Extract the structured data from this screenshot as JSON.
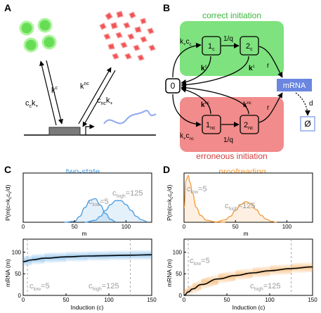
{
  "panel_labels": {
    "a": "A",
    "b": "B",
    "c": "C",
    "d": "D"
  },
  "panel_a": {
    "k_left": "c",
    "k_left_sub": "c",
    "k_left_rest": "k",
    "k_left_plus": "+",
    "k_c": "k",
    "k_c_sup": "c",
    "k_nc": "k",
    "k_nc_sup": "nc",
    "k_right": "c",
    "k_right_sub": "nc",
    "k_right_rest": "k",
    "k_right_plus": "+"
  },
  "panel_b": {
    "correct_title": "correct initiation",
    "erroneous_title": "erroneous initiation",
    "state_zero": "0",
    "state_1c": "1",
    "state_1c_sub": "c",
    "state_2c": "2",
    "state_2c_sub": "c",
    "state_1nc": "1",
    "state_1nc_sub": "nc",
    "state_2nc": "2",
    "state_2nc_sub": "nc",
    "mrna": "mRNA",
    "empty": "Ø",
    "rate_1q_top": "1/q",
    "rate_1q_bottom": "1/q",
    "rate_r_top": "r",
    "rate_r_bottom": "r",
    "rate_d": "d",
    "rate_kc_top": "k",
    "rate_kc_top_sup": "c",
    "rate_kcc": "k",
    "rate_kcc_sub": "+",
    "rate_kcc_c": "c",
    "rate_kcc_csub": "c",
    "rate_knc_a": "k",
    "rate_knc_a_sup": "nc",
    "rate_knc_b": "k",
    "rate_knc_b_sup": "nc",
    "rate_kcnc": "k",
    "rate_kcnc_sub": "+",
    "rate_kcnc_c": "c",
    "rate_kcnc_csub": "nc",
    "rate_kc_mid": "k",
    "rate_kc_mid_sup": "c"
  },
  "panel_c": {
    "title": "two-state",
    "ylabel_top": "P(m|c=k",
    "ylabel_top_sub1": "c",
    "ylabel_top_mid": "c",
    "ylabel_top_sub2": "c",
    "ylabel_top_end": "/d)",
    "xlabel_top": "m",
    "ylabel_bottom": "mRNA (m)",
    "xlabel_bottom": "Induction (c)",
    "clow": "c",
    "clow_sub": "low",
    "clow_val": "=5",
    "chigh": "c",
    "chigh_sub": "high",
    "chigh_val": "=125"
  },
  "panel_d": {
    "title": "proofreading",
    "ylabel_top": "P(m|c=k",
    "ylabel_top_sub1": "c",
    "ylabel_top_mid": "c",
    "ylabel_top_sub2": "c",
    "ylabel_top_end": "/d)",
    "xlabel_top": "m",
    "ylabel_bottom": "mRNA (m)",
    "xlabel_bottom": "Induction (c)",
    "clow": "c",
    "clow_sub": "low",
    "clow_val": "=5",
    "chigh": "c",
    "chigh_sub": "high",
    "chigh_val": "=125"
  },
  "colors": {
    "green_box": "#7ee27e",
    "red_box": "#f28b8b",
    "green_circle": "#66dd55",
    "red_shape": "#f05555",
    "mrna_box": "#6a86e0",
    "two_state": "#4a9de0",
    "proofreading": "#f29a3a",
    "grey_text": "#9a9a9a"
  },
  "chart_data": [
    {
      "type": "line",
      "panel": "C-top",
      "series": [
        {
          "name": "c_low=5",
          "x": [
            40,
            50,
            55,
            60,
            65,
            70,
            75,
            80,
            85,
            90
          ],
          "values": [
            0,
            0.002,
            0.012,
            0.03,
            0.045,
            0.048,
            0.035,
            0.018,
            0.006,
            0.001
          ]
        },
        {
          "name": "c_high=125",
          "x": [
            60,
            70,
            75,
            80,
            85,
            90,
            95,
            100,
            105,
            110,
            115,
            120
          ],
          "values": [
            0,
            0.004,
            0.012,
            0.024,
            0.036,
            0.044,
            0.044,
            0.036,
            0.024,
            0.012,
            0.005,
            0.002
          ]
        }
      ],
      "xticks": [
        "0",
        "50",
        "100"
      ],
      "xlim": [
        0,
        125
      ],
      "ylim": [
        0,
        0.1
      ]
    },
    {
      "type": "line",
      "panel": "C-bottom",
      "x": [
        0,
        10,
        25,
        50,
        75,
        100,
        125,
        150
      ],
      "series": [
        {
          "name": "mean",
          "values": [
            78,
            82,
            86,
            89,
            91,
            92,
            93,
            94
          ]
        }
      ],
      "band_width": 12,
      "xticks": [
        "0",
        "50",
        "100",
        "150"
      ],
      "yticks": [
        "0",
        "50",
        "100"
      ],
      "xlim": [
        0,
        150
      ],
      "ylim": [
        0,
        130
      ],
      "vlines": [
        5,
        125
      ]
    },
    {
      "type": "line",
      "panel": "D-top",
      "series": [
        {
          "name": "c_low=5",
          "x": [
            0,
            2,
            4,
            6,
            8,
            12,
            16,
            22,
            30,
            40
          ],
          "values": [
            0.03,
            0.085,
            0.095,
            0.08,
            0.06,
            0.03,
            0.014,
            0.004,
            0.001,
            0
          ]
        },
        {
          "name": "c_high=125",
          "x": [
            30,
            40,
            45,
            50,
            55,
            60,
            65,
            70,
            75,
            80,
            85,
            90
          ],
          "values": [
            0,
            0.005,
            0.012,
            0.024,
            0.036,
            0.042,
            0.038,
            0.026,
            0.014,
            0.006,
            0.002,
            0
          ]
        }
      ],
      "xticks": [
        "0",
        "50",
        "100"
      ],
      "xlim": [
        0,
        125
      ],
      "ylim": [
        0,
        0.1
      ]
    },
    {
      "type": "line",
      "panel": "D-bottom",
      "x": [
        0,
        5,
        10,
        20,
        40,
        60,
        80,
        100,
        125,
        150
      ],
      "series": [
        {
          "name": "mean",
          "values": [
            0,
            8,
            15,
            25,
            38,
            46,
            52,
            57,
            62,
            66
          ]
        }
      ],
      "band_width": 12,
      "xticks": [
        "0",
        "50",
        "100",
        "150"
      ],
      "yticks": [
        "0",
        "50",
        "100"
      ],
      "xlim": [
        0,
        150
      ],
      "ylim": [
        0,
        130
      ],
      "vlines": [
        5,
        125
      ]
    }
  ]
}
